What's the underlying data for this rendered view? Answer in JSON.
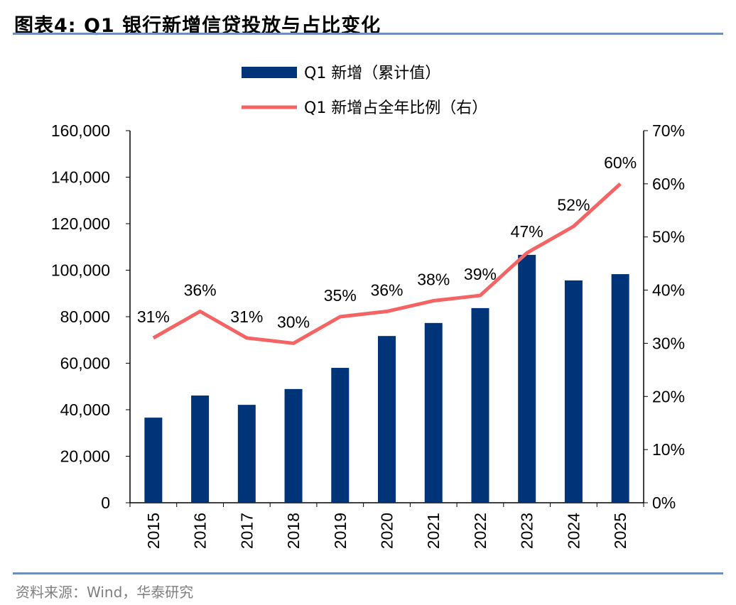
{
  "header": {
    "title": "图表4:  Q1 银行新增信贷投放与占比变化"
  },
  "footer": {
    "source": "资料来源：Wind，华泰研究"
  },
  "colors": {
    "bar": "#003479",
    "line": "#f46464",
    "rule": "#6f8fbf"
  },
  "chart_data": {
    "type": "bar+line",
    "categories": [
      "2015",
      "2016",
      "2017",
      "2018",
      "2019",
      "2020",
      "2021",
      "2022",
      "2023",
      "2024",
      "2025"
    ],
    "series": [
      {
        "name": "Q1 新增（累计值）",
        "type": "bar",
        "axis": "left",
        "values": [
          36600,
          46100,
          42100,
          48900,
          58000,
          71700,
          77300,
          83700,
          106600,
          95600,
          98300
        ]
      },
      {
        "name": "Q1 新增占全年比例（右）",
        "type": "line",
        "axis": "right",
        "values": [
          31,
          36,
          31,
          30,
          35,
          36,
          38,
          39,
          47,
          52,
          60
        ],
        "labels": [
          "31%",
          "36%",
          "31%",
          "30%",
          "35%",
          "36%",
          "38%",
          "39%",
          "47%",
          "52%",
          "60%"
        ]
      }
    ],
    "left_axis": {
      "ylim": [
        0,
        160000
      ],
      "ticks": [
        "0",
        "20,000",
        "40,000",
        "60,000",
        "80,000",
        "100,000",
        "120,000",
        "140,000",
        "160,000"
      ]
    },
    "right_axis": {
      "ylim": [
        0,
        70
      ],
      "ticks": [
        "0%",
        "10%",
        "20%",
        "30%",
        "40%",
        "50%",
        "60%",
        "70%"
      ]
    },
    "legend": "top-center",
    "grid": false
  }
}
